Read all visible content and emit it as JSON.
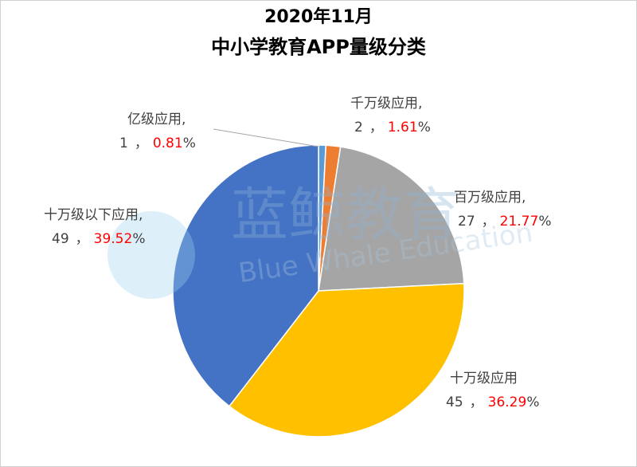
{
  "chart_data": {
    "type": "pie",
    "title": "2020年11月",
    "subtitle": "中小学教育APP量级分类",
    "categories": [
      "亿级应用,",
      "千万级应用,",
      "百万级应用,",
      "十万级应用",
      "十万级以下应用,"
    ],
    "values": [
      1,
      2,
      27,
      45,
      49
    ],
    "percentages": [
      0.81,
      1.61,
      21.77,
      36.29,
      39.52
    ],
    "percent_unit": "%",
    "label_separator": "，",
    "colors": [
      "#5b9bd5",
      "#ed7d31",
      "#a5a5a5",
      "#ffc000",
      "#4472c4"
    ],
    "watermark": {
      "cn": "蓝鲸教育",
      "en": "Blue Whale Education"
    }
  }
}
